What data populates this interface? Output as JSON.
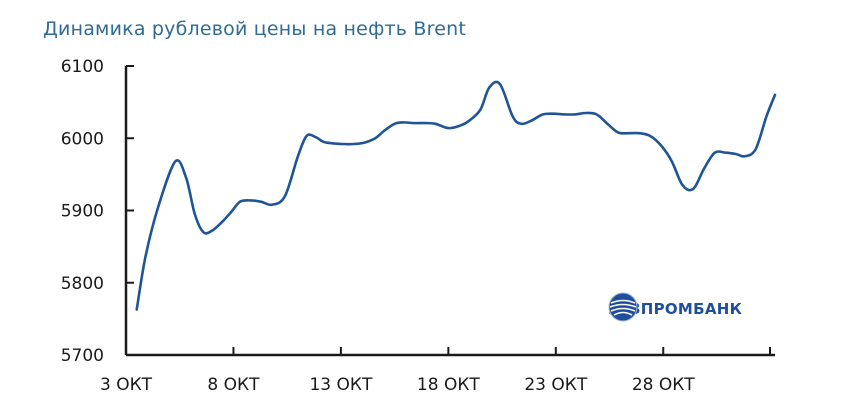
{
  "chart_data": {
    "type": "line",
    "title": "Динамика рублевой цены на нефть Brent",
    "xlabel": "",
    "ylabel": "",
    "ylim": [
      5700,
      6100
    ],
    "yticks": [
      5700,
      5800,
      5900,
      6000,
      6100
    ],
    "xticks": [
      {
        "day": 3,
        "label": "3 ОКТ"
      },
      {
        "day": 8,
        "label": "8 ОКТ"
      },
      {
        "day": 13,
        "label": "13 ОКТ"
      },
      {
        "day": 18,
        "label": "18 ОКТ"
      },
      {
        "day": 23,
        "label": "23 ОКТ"
      },
      {
        "day": 28,
        "label": "28 ОКТ"
      }
    ],
    "grid": false,
    "line_color": "#1f5597",
    "series": [
      {
        "x": [
          3.5,
          3.9,
          4.5,
          5.3,
          5.8,
          6.2,
          6.6,
          7.0,
          7.5,
          7.9,
          8.3,
          8.8,
          9.3,
          9.8,
          10.4,
          11.0,
          11.4,
          11.8,
          12.2,
          12.6,
          13.1,
          13.6,
          14.1,
          14.6,
          15.0,
          15.5,
          15.9,
          16.4,
          16.9,
          17.4,
          18.0,
          18.6,
          19.0,
          19.5,
          19.9,
          20.4,
          21.0,
          21.4,
          21.9,
          22.4,
          22.9,
          23.4,
          23.9,
          24.4,
          24.9,
          25.4,
          25.9,
          26.4,
          26.9,
          27.4,
          27.9,
          28.4,
          28.9,
          29.4,
          29.9,
          30.4,
          30.9,
          31.4,
          31.8,
          32.3,
          32.8,
          33.2
        ],
        "values": [
          5763,
          5835,
          5905,
          5968,
          5945,
          5895,
          5870,
          5872,
          5885,
          5898,
          5912,
          5914,
          5912,
          5908,
          5920,
          5975,
          6003,
          6002,
          5995,
          5993,
          5992,
          5992,
          5994,
          6000,
          6010,
          6020,
          6022,
          6021,
          6021,
          6020,
          6014,
          6018,
          6025,
          6040,
          6070,
          6075,
          6030,
          6020,
          6025,
          6033,
          6034,
          6033,
          6033,
          6035,
          6033,
          6020,
          6008,
          6007,
          6007,
          6003,
          5990,
          5968,
          5935,
          5930,
          5958,
          5980,
          5980,
          5978,
          5975,
          5985,
          6030,
          6060
        ]
      }
    ]
  },
  "logo": {
    "text": "ГАЗПРОМБАНК",
    "icon": "gazprombank-globe-icon",
    "color": "#1f4f9c"
  }
}
